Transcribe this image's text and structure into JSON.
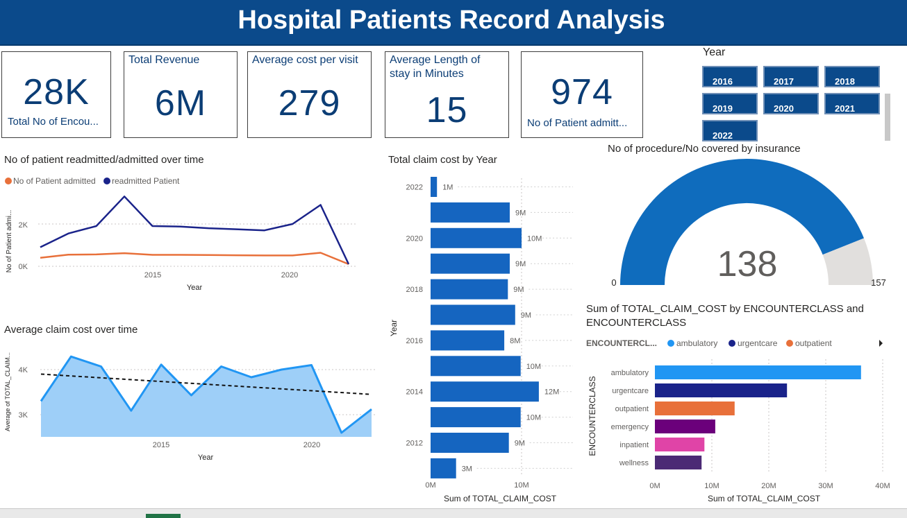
{
  "header": {
    "title": "Hospital Patients Record Analysis"
  },
  "kpis": [
    {
      "title": "",
      "value": "28K",
      "label": "Total No of Encou..."
    },
    {
      "title": "Total Revenue",
      "value": "6M",
      "label": ""
    },
    {
      "title": "Average cost per visit",
      "value": "279",
      "label": ""
    },
    {
      "title": "Average Length of stay in Minutes",
      "value": "15",
      "label": ""
    },
    {
      "title": "",
      "value": "974",
      "label": "No of Patient admitt..."
    }
  ],
  "year_slicer": {
    "title": "Year",
    "years": [
      "2016",
      "2017",
      "2018",
      "2019",
      "2020",
      "2021",
      "2022"
    ]
  },
  "charts": {
    "readmitted": {
      "title": "No of patient readmitted/admitted over time",
      "legend": [
        "No of Patient admitted",
        "readmitted Patient"
      ],
      "ylabel": "No of Patient admi...",
      "xlabel": "Year",
      "yticks": [
        "0K",
        "2K"
      ],
      "xticks": [
        "2015",
        "2020"
      ]
    },
    "avg_claim": {
      "title": "Average claim cost over time",
      "ylabel": "Average of TOTAL_CLAIM...",
      "xlabel": "Year",
      "yticks": [
        "3K",
        "4K"
      ],
      "xticks": [
        "2015",
        "2020"
      ]
    },
    "claim_by_year": {
      "title": "Total claim cost by Year",
      "ylabel": "Year",
      "xlabel": "Sum of TOTAL_CLAIM_COST",
      "xticks": [
        "0M",
        "10M"
      ]
    },
    "gauge": {
      "title": "No of procedure/No covered by insurance",
      "min_label": "0",
      "max_label": "157",
      "value_label": "138"
    },
    "encounter": {
      "title": "Sum of TOTAL_CLAIM_COST by ENCOUNTERCLASS and ENCOUNTERCLASS",
      "legend_title": "ENCOUNTERCL...",
      "legend": [
        "ambulatory",
        "urgentcare",
        "outpatient"
      ],
      "ylabel": "ENCOUNTERCLASS",
      "xlabel": "Sum of TOTAL_CLAIM_COST",
      "xticks": [
        "0M",
        "10M",
        "20M",
        "30M",
        "40M"
      ]
    }
  },
  "colors": {
    "title_bg": "#0b4a8b",
    "admitted": "#e8703a",
    "readmitted": "#1a238a",
    "area_line": "#2196f3",
    "area_fill": "#9ecff8",
    "bar_blue": "#1565c0",
    "gauge_fill": "#0f6cbd",
    "gauge_rest": "#e1dfdd",
    "enc_ambulatory": "#2196f3",
    "enc_urgentcare": "#1a238a",
    "enc_outpatient": "#e8703a",
    "enc_emergency": "#6b007b",
    "enc_inpatient": "#e044a7",
    "enc_wellness": "#4b2a75"
  },
  "chart_data": [
    {
      "type": "line",
      "title": "No of patient readmitted/admitted over time",
      "xlabel": "Year",
      "ylabel": "No of Patient admi...",
      "x": [
        2011,
        2012,
        2013,
        2014,
        2015,
        2016,
        2017,
        2018,
        2019,
        2020,
        2021,
        2022
      ],
      "ylim": [
        0,
        3500
      ],
      "series": [
        {
          "name": "No of Patient admitted",
          "values": [
            400,
            550,
            560,
            620,
            540,
            540,
            530,
            520,
            510,
            510,
            640,
            100
          ]
        },
        {
          "name": "readmitted Patient",
          "values": [
            900,
            1550,
            1900,
            3300,
            1900,
            1880,
            1800,
            1750,
            1700,
            2000,
            2900,
            100
          ]
        }
      ]
    },
    {
      "type": "area",
      "title": "Average claim cost over time",
      "xlabel": "Year",
      "ylabel": "Average of TOTAL_CLAIM...",
      "x": [
        2011,
        2012,
        2013,
        2014,
        2015,
        2016,
        2017,
        2018,
        2019,
        2020,
        2021,
        2022
      ],
      "ylim": [
        2500,
        4500
      ],
      "series": [
        {
          "name": "Average of TOTAL_CLAIM_COST",
          "values": [
            3300,
            4290,
            4070,
            3090,
            4110,
            3430,
            4070,
            3830,
            4000,
            4100,
            2600,
            3120
          ]
        },
        {
          "name": "Trend",
          "values": [
            3900,
            3860,
            3820,
            3780,
            3740,
            3700,
            3660,
            3620,
            3580,
            3540,
            3500,
            3450
          ]
        }
      ]
    },
    {
      "type": "bar",
      "orientation": "horizontal",
      "title": "Total claim cost by Year",
      "xlabel": "Sum of TOTAL_CLAIM_COST",
      "ylabel": "Year",
      "categories": [
        "2022",
        "2021",
        "2020",
        "2019",
        "2018",
        "2017",
        "2016",
        "2015",
        "2014",
        "2013",
        "2012",
        "2011"
      ],
      "ytick_labels": [
        "2022",
        "",
        "2020",
        "",
        "2018",
        "",
        "2016",
        "",
        "2014",
        "",
        "2012",
        ""
      ],
      "values": [
        0.7,
        8.7,
        10.0,
        8.7,
        8.5,
        9.3,
        8.1,
        9.9,
        11.9,
        9.9,
        8.6,
        2.8
      ],
      "data_labels": [
        "1M",
        "9M",
        "10M",
        "9M",
        "9M",
        "9M",
        "8M",
        "10M",
        "12M",
        "10M",
        "9M",
        "3M"
      ],
      "xlim": [
        0,
        15
      ],
      "units": "M"
    },
    {
      "type": "gauge",
      "title": "No of procedure/No covered by insurance",
      "value": 138,
      "min": 0,
      "max": 157
    },
    {
      "type": "bar",
      "orientation": "horizontal",
      "title": "Sum of TOTAL_CLAIM_COST by ENCOUNTERCLASS and ENCOUNTERCLASS",
      "xlabel": "Sum of TOTAL_CLAIM_COST",
      "ylabel": "ENCOUNTERCLASS",
      "categories": [
        "ambulatory",
        "urgentcare",
        "outpatient",
        "emergency",
        "inpatient",
        "wellness"
      ],
      "values": [
        36.2,
        23.2,
        14.0,
        10.6,
        8.7,
        8.2
      ],
      "xlim": [
        0,
        40
      ],
      "units": "M"
    }
  ]
}
